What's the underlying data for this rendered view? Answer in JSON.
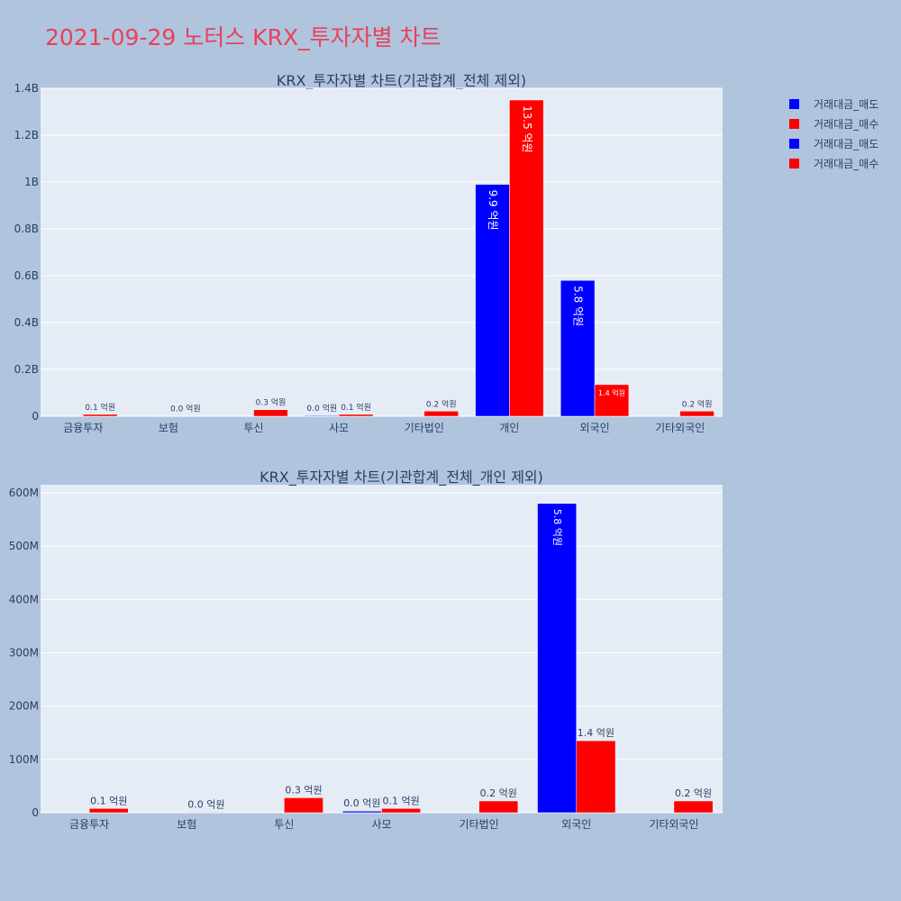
{
  "title": "2021-09-29 노터스 KRX_투자자별 차트",
  "colors": {
    "sell": "#0000ff",
    "buy": "#ff0000",
    "title": "#e8415a",
    "plot_bg": "#e5ecf6",
    "page_bg": "#b0c4de"
  },
  "legend": [
    {
      "name": "거래대금_매도",
      "color": "#0000ff"
    },
    {
      "name": "거래대금_매수",
      "color": "#ff0000"
    },
    {
      "name": "거래대금_매도",
      "color": "#0000ff"
    },
    {
      "name": "거래대금_매수",
      "color": "#ff0000"
    }
  ],
  "chart_data": [
    {
      "type": "bar",
      "title": "KRX_투자자별 차트(기관합계_전체 제외)",
      "categories": [
        "금융투자",
        "보험",
        "투신",
        "사모",
        "기타법인",
        "개인",
        "외국인",
        "기타외국인"
      ],
      "ylim": [
        0,
        1400000000
      ],
      "yticks": [
        0,
        200000000,
        400000000,
        600000000,
        800000000,
        1000000000,
        1200000000,
        1400000000
      ],
      "ytick_labels": [
        "0",
        "0.2B",
        "0.4B",
        "0.6B",
        "0.8B",
        "1B",
        "1.2B",
        "1.4B"
      ],
      "grid": true,
      "series": [
        {
          "name": "거래대금_매도",
          "color": "#0000ff",
          "values": [
            0,
            0,
            0,
            3000000,
            0,
            990000000,
            580000000,
            0
          ],
          "labels": [
            "",
            "",
            "",
            "0.0 억원",
            "",
            "9.9 억원",
            "5.8 억원",
            ""
          ]
        },
        {
          "name": "거래대금_매수",
          "color": "#ff0000",
          "values": [
            8000000,
            1000000,
            28000000,
            8000000,
            22000000,
            1350000000,
            135000000,
            22000000
          ],
          "labels": [
            "0.1 억원",
            "0.0 억원",
            "0.3 억원",
            "0.1 억원",
            "0.2 억원",
            "13.5 억원",
            "1.4 억원",
            "0.2 억원"
          ]
        }
      ]
    },
    {
      "type": "bar",
      "title": "KRX_투자자별 차트(기관합계_전체_개인 제외)",
      "categories": [
        "금융투자",
        "보험",
        "투신",
        "사모",
        "기타법인",
        "외국인",
        "기타외국인"
      ],
      "ylim": [
        0,
        615000000
      ],
      "yticks": [
        0,
        100000000,
        200000000,
        300000000,
        400000000,
        500000000,
        600000000
      ],
      "ytick_labels": [
        "0",
        "100M",
        "200M",
        "300M",
        "400M",
        "500M",
        "600M"
      ],
      "grid": true,
      "series": [
        {
          "name": "거래대금_매도",
          "color": "#0000ff",
          "values": [
            0,
            0,
            0,
            3000000,
            0,
            580000000,
            0
          ],
          "labels": [
            "",
            "",
            "",
            "0.0 억원",
            "",
            "5.8 억원",
            ""
          ]
        },
        {
          "name": "거래대금_매수",
          "color": "#ff0000",
          "values": [
            8000000,
            1000000,
            28000000,
            8000000,
            22000000,
            135000000,
            22000000
          ],
          "labels": [
            "0.1 억원",
            "0.0 억원",
            "0.3 억원",
            "0.1 억원",
            "0.2 억원",
            "1.4 억원",
            "0.2 억원"
          ]
        }
      ]
    }
  ]
}
